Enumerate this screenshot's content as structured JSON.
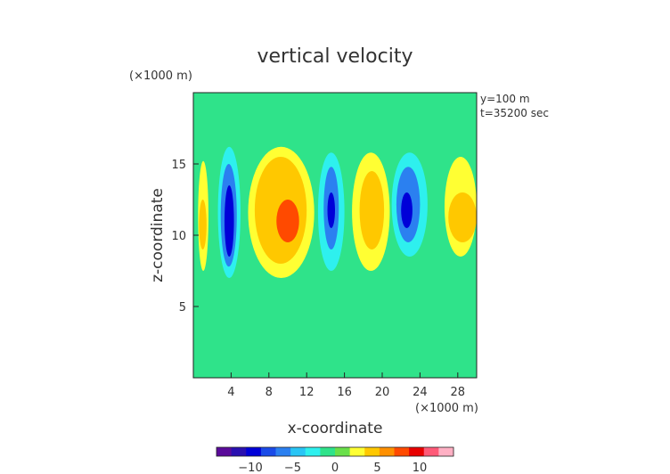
{
  "chart_data": {
    "type": "heatmap",
    "title": "vertical velocity",
    "xlabel": "x-coordinate",
    "ylabel": "z-coordinate",
    "x_unit": "(×1000 m)",
    "y_unit": "(×1000 m)",
    "annotations": [
      "y=100 m",
      "t=35200 sec"
    ],
    "xlim": [
      0,
      30
    ],
    "ylim": [
      0,
      20
    ],
    "x_ticks": [
      4,
      8,
      12,
      16,
      20,
      24,
      28
    ],
    "y_ticks": [
      5,
      10,
      15
    ],
    "color_range": [
      -14,
      14
    ],
    "colorbar_ticks": [
      -10,
      -5,
      0,
      5,
      10
    ],
    "colorbar_labels": [
      "−10",
      "−5",
      "0",
      "5",
      "10"
    ],
    "colormap": [
      "#5a0a9a",
      "#2a10b0",
      "#0000d8",
      "#1a4be8",
      "#2b80f0",
      "#29c5f5",
      "#2ef0ee",
      "#2fe38a",
      "#6ae04a",
      "#ffff33",
      "#ffc800",
      "#ff9000",
      "#ff4a00",
      "#e80000",
      "#ff5a78",
      "#ffb0c4"
    ],
    "cells": [
      {
        "x": [
          0.5,
          1.6
        ],
        "z": [
          7.5,
          15.2
        ],
        "w": 2.2
      },
      {
        "x": [
          0.6,
          1.4
        ],
        "z": [
          9.0,
          12.5
        ],
        "w": 4.5
      },
      {
        "x": [
          2.6,
          5.0
        ],
        "z": [
          7.0,
          16.2
        ],
        "w": -3.0
      },
      {
        "x": [
          2.9,
          4.6
        ],
        "z": [
          7.8,
          15.0
        ],
        "w": -6.5
      },
      {
        "x": [
          3.3,
          4.3
        ],
        "z": [
          8.5,
          13.5
        ],
        "w": -9.5
      },
      {
        "x": [
          5.8,
          12.8
        ],
        "z": [
          7.0,
          16.2
        ],
        "w": 2.2
      },
      {
        "x": [
          6.5,
          12.0
        ],
        "z": [
          8.0,
          15.5
        ],
        "w": 4.5
      },
      {
        "x": [
          8.8,
          11.2
        ],
        "z": [
          9.5,
          12.5
        ],
        "w": 7.0
      },
      {
        "x": [
          13.2,
          16.0
        ],
        "z": [
          7.5,
          15.8
        ],
        "w": -3.0
      },
      {
        "x": [
          13.8,
          15.4
        ],
        "z": [
          9.0,
          14.8
        ],
        "w": -6.5
      },
      {
        "x": [
          14.2,
          15.0
        ],
        "z": [
          10.5,
          13.0
        ],
        "w": -9.0
      },
      {
        "x": [
          16.8,
          20.8
        ],
        "z": [
          7.5,
          15.8
        ],
        "w": 2.2
      },
      {
        "x": [
          17.6,
          20.2
        ],
        "z": [
          9.0,
          14.5
        ],
        "w": 4.5
      },
      {
        "x": [
          21.0,
          24.8
        ],
        "z": [
          8.5,
          15.8
        ],
        "w": -3.0
      },
      {
        "x": [
          21.5,
          24.0
        ],
        "z": [
          9.5,
          14.8
        ],
        "w": -6.5
      },
      {
        "x": [
          22.0,
          23.2
        ],
        "z": [
          10.5,
          13.0
        ],
        "w": -9.0
      },
      {
        "x": [
          26.6,
          30.0
        ],
        "z": [
          8.5,
          15.5
        ],
        "w": 2.2
      },
      {
        "x": [
          27.0,
          30.0
        ],
        "z": [
          9.5,
          13.0
        ],
        "w": 4.5
      }
    ]
  }
}
